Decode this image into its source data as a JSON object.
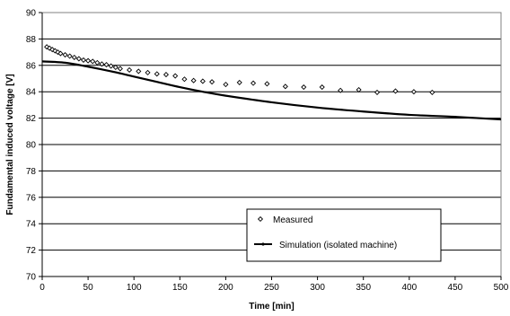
{
  "chart_data": {
    "type": "scatter",
    "title": "",
    "xlabel": "Time [min]",
    "ylabel": "Fundamental induced voltage [V]",
    "xlim": [
      0,
      500
    ],
    "ylim": [
      70,
      90
    ],
    "x_ticks": [
      "0",
      "50",
      "100",
      "150",
      "200",
      "250",
      "300",
      "350",
      "400",
      "450",
      "500"
    ],
    "y_ticks": [
      "70",
      "72",
      "74",
      "76",
      "78",
      "80",
      "82",
      "84",
      "86",
      "88",
      "90"
    ],
    "grid": "horizontal",
    "legend_position": "lower-center-right",
    "series": [
      {
        "name": "Measured",
        "style": "diamond-markers",
        "color": "#000000",
        "x": [
          5,
          8,
          11,
          14,
          17,
          20,
          25,
          30,
          35,
          40,
          45,
          50,
          55,
          60,
          65,
          70,
          75,
          80,
          85,
          95,
          105,
          115,
          125,
          135,
          145,
          155,
          165,
          175,
          185,
          200,
          215,
          230,
          245,
          265,
          285,
          305,
          325,
          345,
          365,
          385,
          405,
          425
        ],
        "y": [
          87.4,
          87.3,
          87.2,
          87.1,
          87.0,
          86.9,
          86.8,
          86.7,
          86.6,
          86.5,
          86.4,
          86.35,
          86.3,
          86.2,
          86.1,
          86.05,
          85.95,
          85.85,
          85.75,
          85.65,
          85.55,
          85.45,
          85.35,
          85.3,
          85.2,
          84.95,
          84.85,
          84.8,
          84.75,
          84.55,
          84.7,
          84.65,
          84.6,
          84.4,
          84.35,
          84.35,
          84.1,
          84.15,
          83.95,
          84.05,
          84.0,
          83.95
        ]
      },
      {
        "name": "Simulation (isolated machine)",
        "style": "line",
        "color": "#000000",
        "x": [
          0,
          25,
          50,
          75,
          100,
          125,
          150,
          175,
          200,
          250,
          300,
          350,
          400,
          450,
          500
        ],
        "y": [
          86.3,
          86.2,
          85.9,
          85.55,
          85.15,
          84.75,
          84.35,
          84.0,
          83.7,
          83.2,
          82.8,
          82.5,
          82.25,
          82.1,
          81.9
        ]
      }
    ]
  }
}
